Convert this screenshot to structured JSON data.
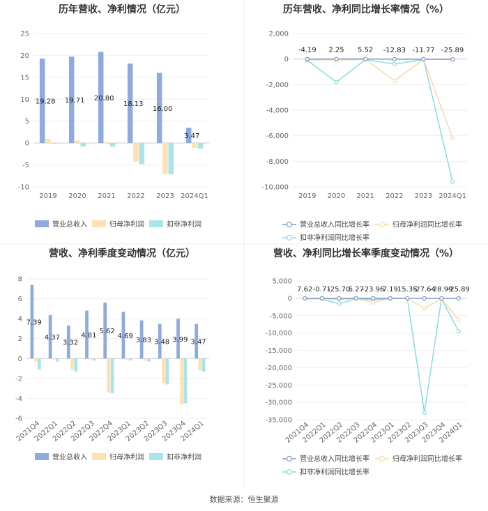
{
  "source": "数据来源：恒生聚源",
  "colors": {
    "revenue": "#8faadc",
    "net": "#ffe0b3",
    "nonnet": "#a8e4e8",
    "revenue_line": "#7f98c9",
    "net_line": "#f9d9a6",
    "nonnet_line": "#88dbe3"
  },
  "chart_data": [
    {
      "type": "bar",
      "title": "历年营收、净利情况（亿元）",
      "categories": [
        "2019",
        "2020",
        "2021",
        "2022",
        "2023",
        "2024Q1"
      ],
      "series": [
        {
          "name": "营业总收入",
          "values": [
            19.28,
            19.71,
            20.8,
            18.13,
            16.0,
            3.47
          ]
        },
        {
          "name": "归母净利润",
          "values": [
            0.95,
            0.6,
            0.2,
            -4.3,
            -7.0,
            -1.1
          ]
        },
        {
          "name": "扣非净利润",
          "values": [
            -0.2,
            -0.8,
            -0.8,
            -4.8,
            -7.1,
            -1.3
          ]
        }
      ],
      "data_labels": [
        "19.28",
        "19.71",
        "20.80",
        "18.13",
        "16.00",
        "3.47"
      ],
      "ylim": [
        -10,
        25
      ],
      "yticks": [
        "25",
        "20",
        "15",
        "10",
        "5",
        "0",
        "-5",
        "-10"
      ],
      "legend": "bottom"
    },
    {
      "type": "line",
      "title": "历年营收、净利同比增长率情况（%）",
      "categories": [
        "2019",
        "2020",
        "2021",
        "2022",
        "2023",
        "2024Q1"
      ],
      "series": [
        {
          "name": "营业总收入同比增长率",
          "values": [
            -4.19,
            2.25,
            5.52,
            -12.83,
            -11.77,
            -25.89
          ]
        },
        {
          "name": "归母净利润同比增长率",
          "values": [
            -50,
            -70,
            -30,
            -1700,
            -20,
            -6200
          ]
        },
        {
          "name": "扣非净利润同比增长率",
          "values": [
            -100,
            -1800,
            -40,
            -400,
            -30,
            -9600
          ]
        }
      ],
      "data_labels": [
        "-4.19",
        "2.25",
        "5.52",
        "-12.83",
        "-11.77",
        "-25.89"
      ],
      "ylim": [
        -10000,
        2000
      ],
      "yticks": [
        "2,000",
        "0",
        "-2,000",
        "-4,000",
        "-6,000",
        "-8,000",
        "-10,000"
      ],
      "legend": "bottom"
    },
    {
      "type": "bar",
      "title": "营收、净利季度变动情况（亿元）",
      "categories": [
        "2021Q4",
        "2022Q1",
        "2022Q2",
        "2022Q3",
        "2022Q4",
        "2023Q1",
        "2023Q2",
        "2023Q3",
        "2023Q4",
        "2024Q1"
      ],
      "series": [
        {
          "name": "营业总收入",
          "values": [
            7.39,
            4.37,
            3.32,
            4.81,
            5.62,
            4.69,
            3.83,
            3.48,
            3.99,
            3.47
          ]
        },
        {
          "name": "归母净利润",
          "values": [
            -0.3,
            -0.1,
            -1.1,
            -0.1,
            -3.4,
            -0.1,
            -0.2,
            -2.5,
            -4.6,
            -1.2
          ]
        },
        {
          "name": "扣非净利润",
          "values": [
            -1.1,
            -0.3,
            -1.3,
            -0.2,
            -3.5,
            -0.2,
            -0.3,
            -2.6,
            -4.5,
            -1.3
          ]
        }
      ],
      "data_labels": [
        "7.39",
        "4.37",
        "3.32",
        "4.81",
        "5.62",
        "4.69",
        "3.83",
        "3.48",
        "3.99",
        "3.47"
      ],
      "ylim": [
        -6,
        8
      ],
      "yticks": [
        "8",
        "6",
        "4",
        "2",
        "0",
        "-2",
        "-4",
        "-6"
      ],
      "legend": "bottom"
    },
    {
      "type": "line",
      "title": "营收、净利同比增长率季度变动情况（%）",
      "categories": [
        "2021Q4",
        "2022Q1",
        "2022Q2",
        "2022Q3",
        "2022Q4",
        "2023Q1",
        "2023Q2",
        "2023Q3",
        "2023Q4",
        "2024Q1"
      ],
      "series": [
        {
          "name": "营业总收入同比增长率",
          "values": [
            7.62,
            -0.71,
            -25.7,
            6.27,
            -23.96,
            7.19,
            15.35,
            -27.64,
            -28.99,
            -25.89
          ]
        },
        {
          "name": "归母净利润同比增长率",
          "values": [
            -100,
            -150,
            -400,
            -100,
            -1200,
            -50,
            -50,
            -2900,
            -100,
            -6200
          ]
        },
        {
          "name": "扣非净利润同比增长率",
          "values": [
            -100,
            -200,
            -1600,
            -100,
            -400,
            -100,
            -50,
            -33000,
            -100,
            -9500
          ]
        }
      ],
      "data_labels": [
        "7.62",
        "-0.71",
        "-25.70",
        "6.27",
        "-23.96",
        "7.19",
        "15.35",
        "-27.64",
        "-28.99",
        "-25.89"
      ],
      "ylim": [
        -35000,
        5000
      ],
      "yticks": [
        "5,000",
        "0",
        "-5,000",
        "-10,000",
        "-15,000",
        "-20,000",
        "-25,000",
        "-30,000",
        "-35,000"
      ],
      "legend": "bottom"
    }
  ]
}
